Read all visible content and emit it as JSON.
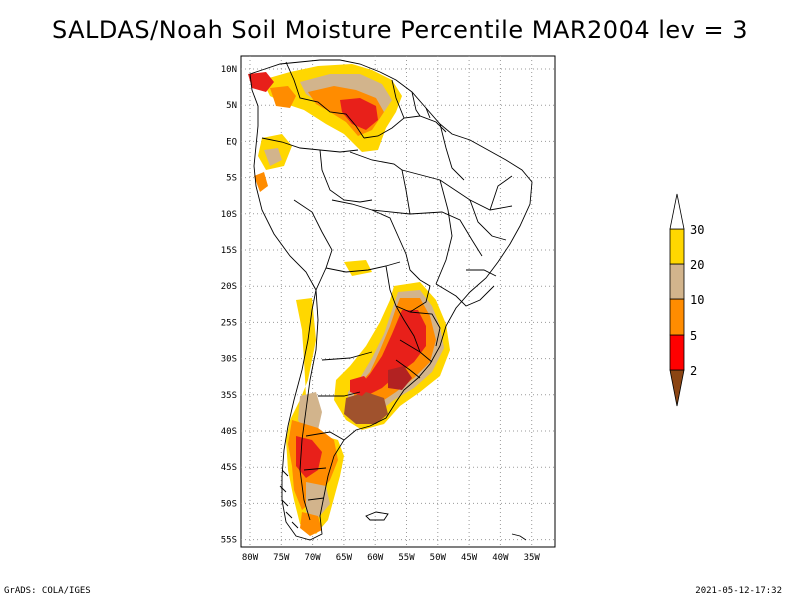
{
  "title": "SALDAS/Noah Soil Moisture Percentile MAR2004 lev = 3",
  "footer": {
    "left": "GrADS: COLA/IGES",
    "right": "2021-05-12-17:32"
  },
  "lat_labels": [
    "10N",
    "5N",
    "EQ",
    "5S",
    "10S",
    "15S",
    "20S",
    "25S",
    "30S",
    "35S",
    "40S",
    "45S",
    "50S",
    "55S"
  ],
  "lon_labels": [
    "80W",
    "75W",
    "70W",
    "65W",
    "60W",
    "55W",
    "50W",
    "45W",
    "40W",
    "35W"
  ],
  "colorbar": {
    "labels": [
      "2",
      "5",
      "10",
      "20",
      "30"
    ],
    "colors": [
      "#8b4513",
      "#ff0000",
      "#ff8c00",
      "#d2b48c",
      "#ffd700",
      "#ffffff"
    ]
  },
  "palette": {
    "dark": "#a0522d",
    "red": "#e8201a",
    "orange": "#ff8c00",
    "tan": "#d2b48c",
    "yellow": "#ffd700"
  }
}
